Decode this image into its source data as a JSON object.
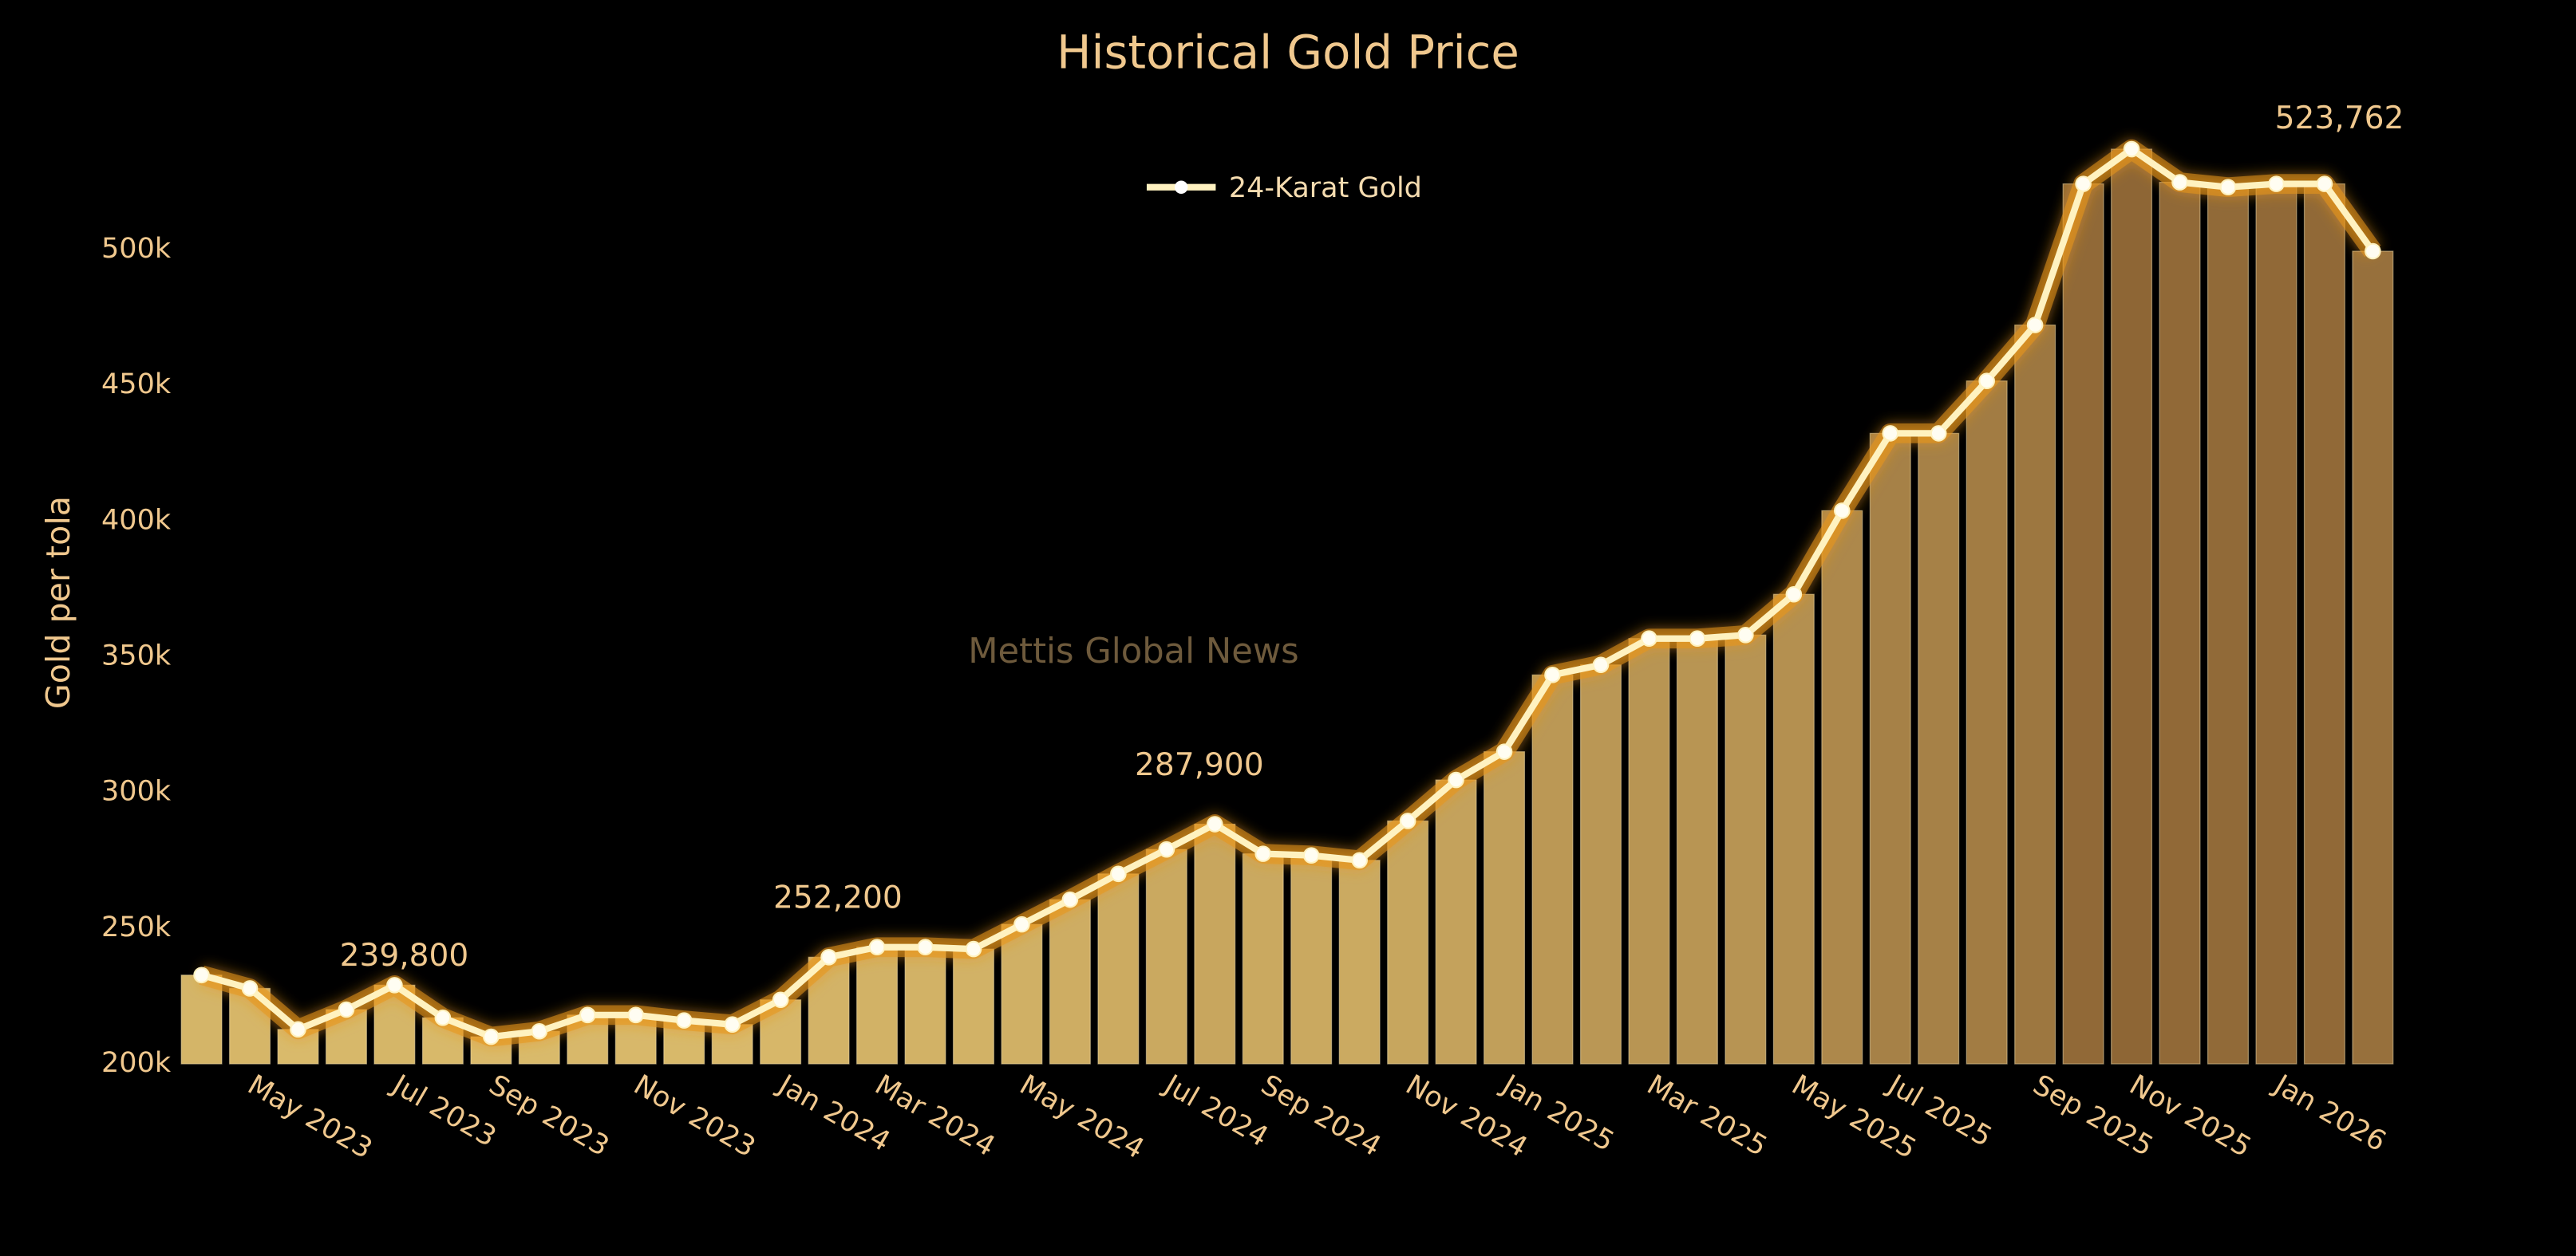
{
  "chart_data": {
    "type": "combo",
    "title": "Historical Gold Price",
    "y_label": "Gold per tola",
    "watermark": "Mettis Global News",
    "categories": [
      null,
      "May 2023",
      null,
      null,
      "Jul 2023",
      null,
      "Sep 2023",
      null,
      null,
      "Nov 2023",
      null,
      null,
      "Jan 2024",
      null,
      "Mar 2024",
      null,
      null,
      "May 2024",
      null,
      null,
      "Jul 2024",
      null,
      "Sep 2024",
      null,
      null,
      "Nov 2024",
      null,
      "Jan 2025",
      null,
      null,
      "Mar 2025",
      null,
      null,
      "May 2025",
      null,
      "Jul 2025",
      null,
      null,
      "Sep 2025",
      null,
      "Nov 2025",
      null,
      null,
      "Jan 2026",
      null,
      null
    ],
    "series": [
      {
        "name": "24-Karat Gold",
        "color": "#fff2c0",
        "values": [
          232700,
          227800,
          212700,
          220000,
          229000,
          217000,
          210000,
          212000,
          218000,
          218000,
          216000,
          214500,
          223600,
          239300,
          243000,
          243000,
          242300,
          251400,
          260500,
          270000,
          279000,
          288300,
          277400,
          276800,
          275000,
          289500,
          304600,
          315000,
          343300,
          347000,
          356700,
          356700,
          358000,
          373000,
          403800,
          432300,
          432300,
          451600,
          472200,
          524200,
          537000,
          524800,
          523000,
          524200,
          524200,
          499400
        ]
      }
    ],
    "bar_colorscale": [
      "#dcbd6d",
      "#8c6434"
    ],
    "glow_color": "#e8961c",
    "ylim": [
      200000,
      545000
    ],
    "yticks": [
      {
        "value": 200000,
        "label": "200k"
      },
      {
        "value": 250000,
        "label": "250k"
      },
      {
        "value": 300000,
        "label": "300k"
      },
      {
        "value": 350000,
        "label": "350k"
      },
      {
        "value": 400000,
        "label": "400k"
      },
      {
        "value": 450000,
        "label": "450k"
      },
      {
        "value": 500000,
        "label": "500k"
      }
    ],
    "annotations": [
      "239,800",
      "252,200",
      "287,900",
      "523,762"
    ]
  }
}
